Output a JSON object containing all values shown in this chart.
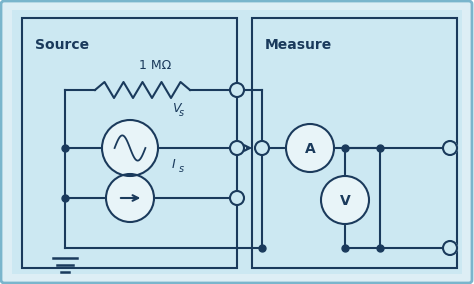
{
  "outer_bg": "#ddeef5",
  "bg_color": "#b8dce8",
  "box_color": "#cce8f2",
  "line_color": "#1a3a5c",
  "circle_fill": "#e8f4f8",
  "white_outer": "#eef6fa",
  "source_label": "Source",
  "measure_label": "Measure",
  "resistor_label": "1 MΩ",
  "vs_label": "V",
  "vs_sub": "s",
  "is_label": "I",
  "is_sub": "s"
}
